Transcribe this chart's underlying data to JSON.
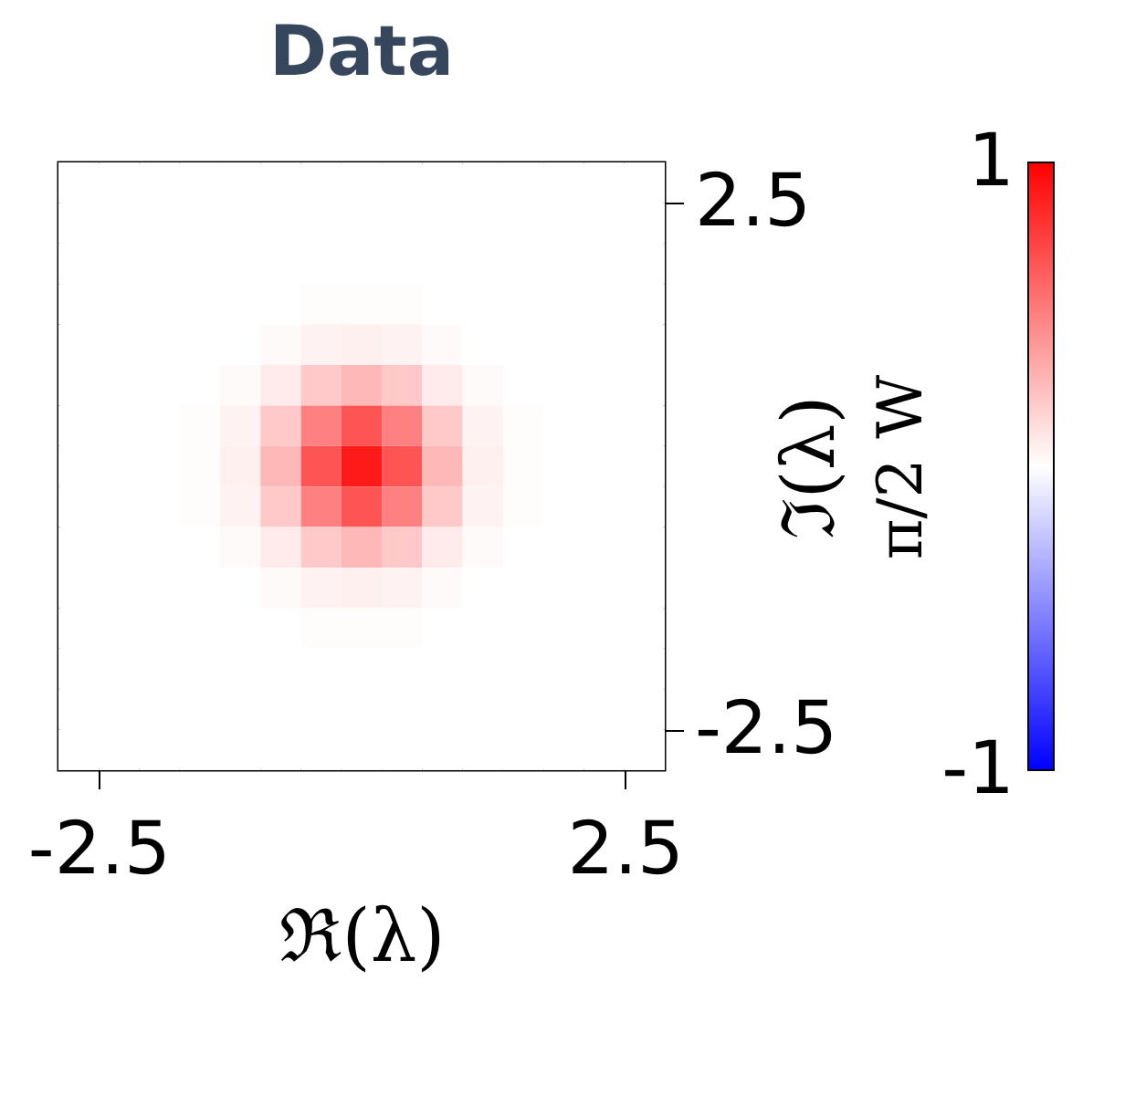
{
  "chart_data": {
    "type": "heatmap",
    "title": "Data",
    "xlabel": "ℜ(λ)",
    "ylabel": "ℑ(λ)",
    "clabel": "π/2 W",
    "x": [
      -2.688,
      -2.304,
      -1.92,
      -1.536,
      -1.152,
      -0.768,
      -0.384,
      0,
      0.384,
      0.768,
      1.152,
      1.536,
      1.92,
      2.304,
      2.688
    ],
    "y": [
      2.688,
      2.304,
      1.92,
      1.536,
      1.152,
      0.768,
      0.384,
      0,
      -0.384,
      -0.768,
      -1.152,
      -1.536,
      -1.92,
      -2.304,
      -2.688
    ],
    "xlim": [
      -2.88,
      2.88
    ],
    "xticks": [
      -2.5,
      2.5
    ],
    "ylim": [
      -2.88,
      2.88
    ],
    "yticks": [
      -2.5,
      2.5
    ],
    "clim": [
      -1,
      1
    ],
    "cticks": [
      -1,
      1
    ],
    "colors": [
      "#0000ff",
      "#ffffff",
      "#ff0000"
    ],
    "grid": false,
    "cells": [
      [
        0,
        0,
        0,
        0,
        0,
        0,
        0,
        0,
        0,
        0,
        0,
        0,
        0,
        0,
        0
      ],
      [
        0,
        0,
        0,
        0,
        0,
        0,
        0,
        0,
        0,
        0,
        0,
        0,
        0,
        0,
        0
      ],
      [
        0,
        0,
        0,
        0,
        0,
        0,
        0,
        0,
        0,
        0,
        0,
        0,
        0,
        0,
        0
      ],
      [
        0,
        0,
        0,
        0,
        0,
        0,
        0.01,
        0.01,
        0.01,
        0,
        0,
        0,
        0,
        0,
        0
      ],
      [
        0,
        0,
        0,
        0,
        0,
        0.02,
        0.05,
        0.06,
        0.05,
        0.02,
        0,
        0,
        0,
        0,
        0
      ],
      [
        0,
        0,
        0,
        0,
        0.02,
        0.08,
        0.21,
        0.28,
        0.21,
        0.08,
        0.02,
        0,
        0,
        0,
        0
      ],
      [
        0,
        0,
        0,
        0.01,
        0.05,
        0.21,
        0.5,
        0.67,
        0.5,
        0.21,
        0.05,
        0.01,
        0,
        0,
        0
      ],
      [
        0,
        0,
        0,
        0.01,
        0.06,
        0.28,
        0.67,
        0.9,
        0.67,
        0.28,
        0.06,
        0.01,
        0,
        0,
        0
      ],
      [
        0,
        0,
        0,
        0.01,
        0.05,
        0.21,
        0.5,
        0.67,
        0.5,
        0.21,
        0.05,
        0.01,
        0,
        0,
        0
      ],
      [
        0,
        0,
        0,
        0,
        0.02,
        0.08,
        0.21,
        0.28,
        0.21,
        0.08,
        0.02,
        0,
        0,
        0,
        0
      ],
      [
        0,
        0,
        0,
        0,
        0,
        0.02,
        0.05,
        0.06,
        0.05,
        0.02,
        0,
        0,
        0,
        0,
        0
      ],
      [
        0,
        0,
        0,
        0,
        0,
        0,
        0.01,
        0.01,
        0.01,
        0,
        0,
        0,
        0,
        0,
        0
      ],
      [
        0,
        0,
        0,
        0,
        0,
        0,
        0,
        0,
        0,
        0,
        0,
        0,
        0,
        0,
        0
      ],
      [
        0,
        0,
        0,
        0,
        0,
        0,
        0,
        0,
        0,
        0,
        0,
        0,
        0,
        0,
        0
      ],
      [
        0,
        0,
        0,
        0,
        0,
        0,
        0,
        0,
        0,
        0,
        0,
        0,
        0,
        0,
        0
      ]
    ]
  }
}
